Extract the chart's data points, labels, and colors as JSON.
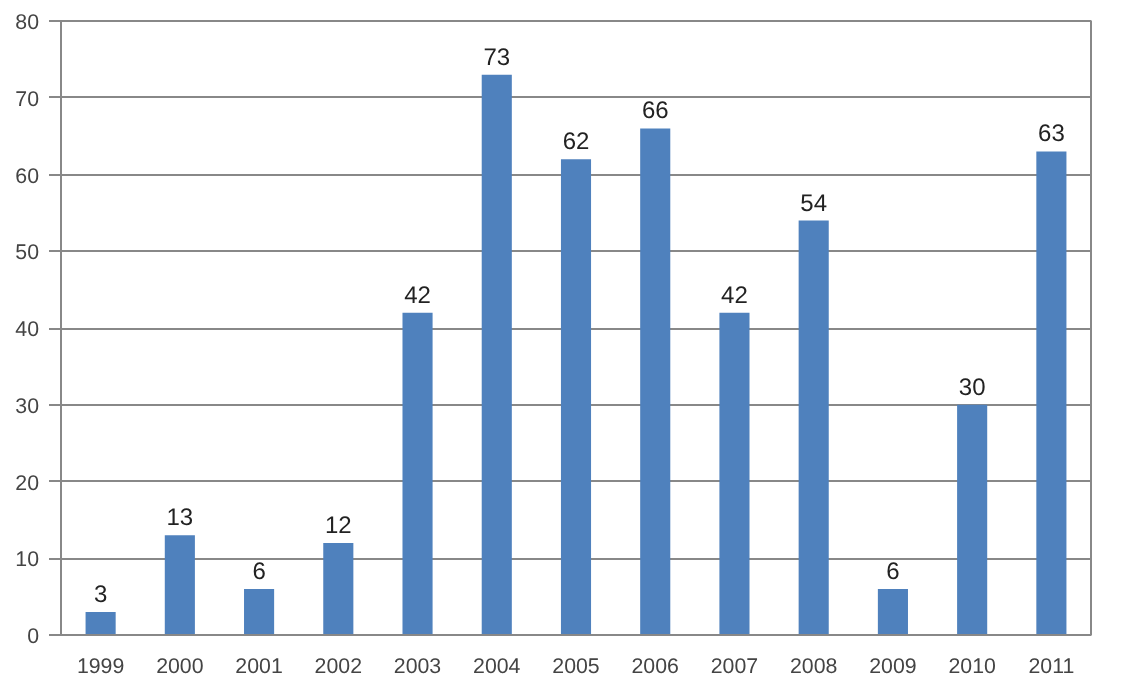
{
  "chart_data": {
    "type": "bar",
    "categories": [
      "1999",
      "2000",
      "2001",
      "2002",
      "2003",
      "2004",
      "2005",
      "2006",
      "2007",
      "2008",
      "2009",
      "2010",
      "2011"
    ],
    "values": [
      3,
      13,
      6,
      12,
      42,
      73,
      62,
      66,
      42,
      54,
      6,
      30,
      63
    ],
    "color": "#4f81bd",
    "ylim": [
      0,
      80
    ],
    "yticks": [
      0,
      10,
      20,
      30,
      40,
      50,
      60,
      70,
      80
    ],
    "grid": "y",
    "data_labels": true
  }
}
